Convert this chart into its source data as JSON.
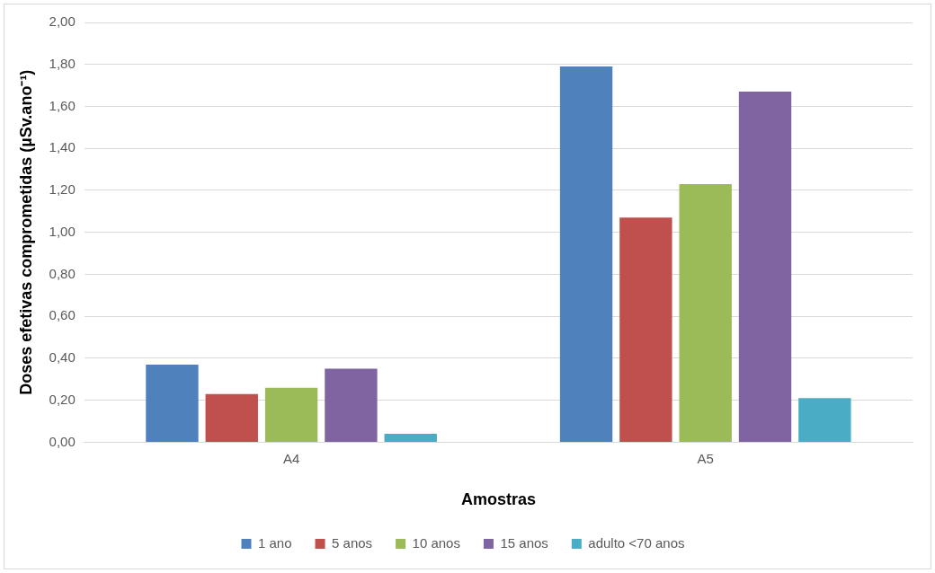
{
  "chart_data": {
    "type": "bar",
    "xlabel": "Amostras",
    "ylabel": "Doses efetivas comprometidas (µSv.ano⁻¹)",
    "categories": [
      "A4",
      "A5"
    ],
    "series": [
      {
        "name": "1 ano",
        "color": "#4f81bd",
        "values": [
          0.37,
          1.79
        ]
      },
      {
        "name": "5 anos",
        "color": "#c0504d",
        "values": [
          0.23,
          1.07
        ]
      },
      {
        "name": "10 anos",
        "color": "#9bbb59",
        "values": [
          0.26,
          1.23
        ]
      },
      {
        "name": "15 anos",
        "color": "#8064a2",
        "values": [
          0.35,
          1.67
        ]
      },
      {
        "name": "adulto <70 anos",
        "color": "#4bacc6",
        "values": [
          0.04,
          0.21
        ]
      }
    ],
    "ylim": [
      0,
      2
    ],
    "yticks": [
      {
        "value": 0,
        "label": "0,00"
      },
      {
        "value": 0.2,
        "label": "0,20"
      },
      {
        "value": 0.4,
        "label": "0,40"
      },
      {
        "value": 0.6,
        "label": "0,60"
      },
      {
        "value": 0.8,
        "label": "0,80"
      },
      {
        "value": 1,
        "label": "1,00"
      },
      {
        "value": 1.2,
        "label": "1,20"
      },
      {
        "value": 1.4,
        "label": "1,40"
      },
      {
        "value": 1.6,
        "label": "1,60"
      },
      {
        "value": 1.8,
        "label": "1,80"
      },
      {
        "value": 2,
        "label": "2,00"
      }
    ],
    "grid": "y",
    "legend": "bottom"
  }
}
